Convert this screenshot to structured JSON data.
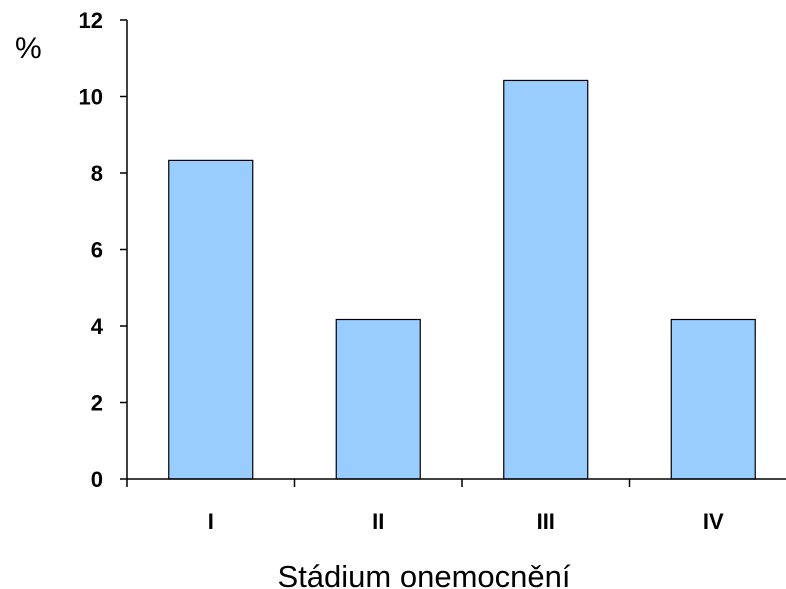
{
  "chart_data": {
    "type": "bar",
    "categories": [
      "I",
      "II",
      "III",
      "IV"
    ],
    "values": [
      8.33,
      4.17,
      10.42,
      4.17
    ],
    "title": "",
    "xlabel": "Stádium onemocnění",
    "ylabel": "%",
    "ylim": [
      0,
      12
    ],
    "yticks": [
      "0",
      "2",
      "4",
      "6",
      "8",
      "10",
      "12"
    ],
    "grid": false,
    "legend": "none",
    "colors": {
      "bar_fill": "#99CCFF",
      "bar_stroke": "#000000",
      "axis": "#000000"
    }
  }
}
